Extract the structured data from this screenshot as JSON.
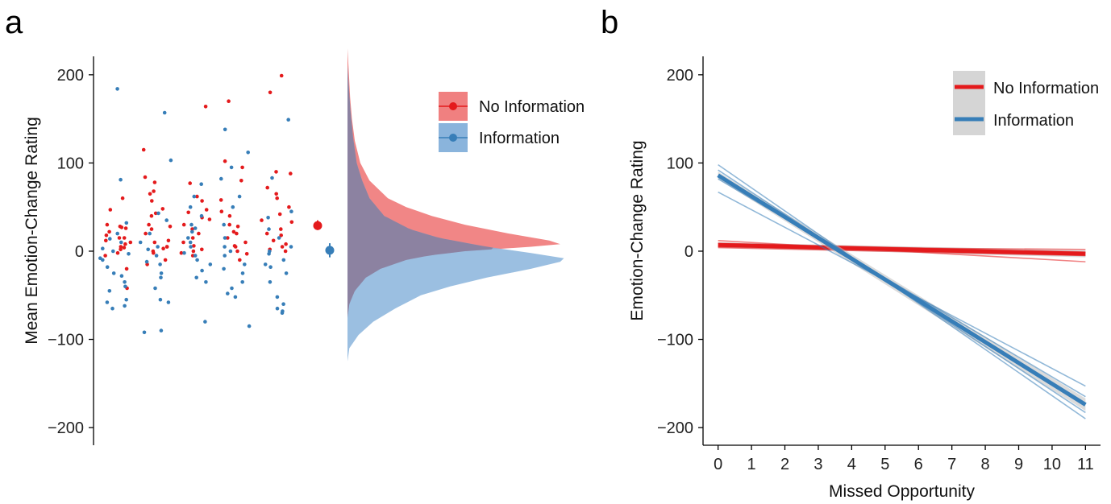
{
  "colors": {
    "no_information": "#e41a1c",
    "information": "#377eb8",
    "no_information_fill": "#f08080",
    "information_fill": "#8ab4dc",
    "overlap_fill": "#8b7f9e"
  },
  "chart_data": [
    {
      "panel": "a",
      "type": "scatter",
      "ylabel": "Mean Emotion-Change Rating",
      "ylim": [
        -220,
        230
      ],
      "yticks": [
        -200,
        -100,
        0,
        100,
        200
      ],
      "ytick_labels": [
        "−200",
        "−100",
        "0",
        "100",
        "200"
      ],
      "legend": [
        {
          "name": "No Information",
          "color": "#e41a1c"
        },
        {
          "name": "Information",
          "color": "#377eb8"
        }
      ],
      "legend_position": "top-right",
      "series": [
        {
          "name": "No Information",
          "color": "#e41a1c",
          "points": [
            [
              1,
              28
            ],
            [
              1,
              22
            ],
            [
              1,
              15
            ],
            [
              1,
              10
            ],
            [
              1,
              5
            ],
            [
              1,
              2
            ],
            [
              1,
              -5
            ],
            [
              1,
              -42
            ],
            [
              1,
              27
            ],
            [
              1,
              8
            ],
            [
              1,
              60
            ],
            [
              1,
              47
            ],
            [
              1,
              15
            ],
            [
              1,
              12
            ],
            [
              1,
              -2
            ],
            [
              1,
              30
            ],
            [
              1,
              18
            ],
            [
              1,
              4
            ],
            [
              1,
              -20
            ],
            [
              1,
              26
            ],
            [
              2,
              115
            ],
            [
              2,
              78
            ],
            [
              2,
              48
            ],
            [
              2,
              40
            ],
            [
              2,
              30
            ],
            [
              2,
              25
            ],
            [
              2,
              12
            ],
            [
              2,
              5
            ],
            [
              2,
              0
            ],
            [
              2,
              -2
            ],
            [
              2,
              -10
            ],
            [
              2,
              20
            ],
            [
              2,
              84
            ],
            [
              2,
              65
            ],
            [
              2,
              57
            ],
            [
              2,
              43
            ],
            [
              2,
              28
            ],
            [
              2,
              10
            ],
            [
              2,
              3
            ],
            [
              2,
              -15
            ],
            [
              2,
              68
            ],
            [
              2,
              5
            ],
            [
              3,
              164
            ],
            [
              3,
              77
            ],
            [
              3,
              62
            ],
            [
              3,
              47
            ],
            [
              3,
              38
            ],
            [
              3,
              30
            ],
            [
              3,
              20
            ],
            [
              3,
              10
            ],
            [
              3,
              2
            ],
            [
              3,
              -5
            ],
            [
              3,
              57
            ],
            [
              3,
              44
            ],
            [
              3,
              25
            ],
            [
              3,
              15
            ],
            [
              3,
              0
            ],
            [
              3,
              36
            ],
            [
              3,
              6
            ],
            [
              3,
              -2
            ],
            [
              4,
              170
            ],
            [
              4,
              102
            ],
            [
              4,
              80
            ],
            [
              4,
              58
            ],
            [
              4,
              40
            ],
            [
              4,
              30
            ],
            [
              4,
              22
            ],
            [
              4,
              15
            ],
            [
              4,
              10
            ],
            [
              4,
              5
            ],
            [
              4,
              0
            ],
            [
              4,
              -3
            ],
            [
              4,
              -10
            ],
            [
              4,
              95
            ],
            [
              4,
              45
            ],
            [
              4,
              28
            ],
            [
              4,
              6
            ],
            [
              4,
              20
            ],
            [
              5,
              199
            ],
            [
              5,
              180
            ],
            [
              5,
              90
            ],
            [
              5,
              88
            ],
            [
              5,
              72
            ],
            [
              5,
              60
            ],
            [
              5,
              50
            ],
            [
              5,
              42
            ],
            [
              5,
              35
            ],
            [
              5,
              25
            ],
            [
              5,
              18
            ],
            [
              5,
              12
            ],
            [
              5,
              8
            ],
            [
              5,
              5
            ],
            [
              5,
              2
            ],
            [
              5,
              0
            ],
            [
              5,
              33
            ],
            [
              5,
              65
            ],
            [
              5,
              20
            ]
          ]
        },
        {
          "name": "Information",
          "color": "#377eb8",
          "points": [
            [
              1,
              184
            ],
            [
              1,
              81
            ],
            [
              1,
              32
            ],
            [
              1,
              20
            ],
            [
              1,
              10
            ],
            [
              1,
              3
            ],
            [
              1,
              -3
            ],
            [
              1,
              -10
            ],
            [
              1,
              -18
            ],
            [
              1,
              -25
            ],
            [
              1,
              -35
            ],
            [
              1,
              -45
            ],
            [
              1,
              -55
            ],
            [
              1,
              -58
            ],
            [
              1,
              -62
            ],
            [
              1,
              -65
            ],
            [
              1,
              0
            ],
            [
              1,
              -8
            ],
            [
              1,
              14
            ],
            [
              1,
              -28
            ],
            [
              1,
              -40
            ],
            [
              2,
              157
            ],
            [
              2,
              103
            ],
            [
              2,
              43
            ],
            [
              2,
              35
            ],
            [
              2,
              20
            ],
            [
              2,
              10
            ],
            [
              2,
              2
            ],
            [
              2,
              -5
            ],
            [
              2,
              -15
            ],
            [
              2,
              -25
            ],
            [
              2,
              -30
            ],
            [
              2,
              -42
            ],
            [
              2,
              -55
            ],
            [
              2,
              -58
            ],
            [
              2,
              -90
            ],
            [
              2,
              -92
            ],
            [
              2,
              5
            ],
            [
              2,
              -12
            ],
            [
              3,
              76
            ],
            [
              3,
              62
            ],
            [
              3,
              50
            ],
            [
              3,
              40
            ],
            [
              3,
              30
            ],
            [
              3,
              22
            ],
            [
              3,
              15
            ],
            [
              3,
              5
            ],
            [
              3,
              -2
            ],
            [
              3,
              -10
            ],
            [
              3,
              -15
            ],
            [
              3,
              -22
            ],
            [
              3,
              -30
            ],
            [
              3,
              -35
            ],
            [
              3,
              -80
            ],
            [
              3,
              10
            ],
            [
              3,
              -5
            ],
            [
              3,
              26
            ],
            [
              4,
              138
            ],
            [
              4,
              112
            ],
            [
              4,
              95
            ],
            [
              4,
              82
            ],
            [
              4,
              62
            ],
            [
              4,
              50
            ],
            [
              4,
              30
            ],
            [
              4,
              15
            ],
            [
              4,
              5
            ],
            [
              4,
              -5
            ],
            [
              4,
              -15
            ],
            [
              4,
              -25
            ],
            [
              4,
              -35
            ],
            [
              4,
              -42
            ],
            [
              4,
              -48
            ],
            [
              4,
              -52
            ],
            [
              4,
              -85
            ],
            [
              4,
              0
            ],
            [
              4,
              -20
            ],
            [
              5,
              149
            ],
            [
              5,
              83
            ],
            [
              5,
              45
            ],
            [
              5,
              38
            ],
            [
              5,
              25
            ],
            [
              5,
              15
            ],
            [
              5,
              5
            ],
            [
              5,
              -3
            ],
            [
              5,
              -10
            ],
            [
              5,
              -18
            ],
            [
              5,
              -25
            ],
            [
              5,
              -35
            ],
            [
              5,
              -52
            ],
            [
              5,
              -60
            ],
            [
              5,
              -65
            ],
            [
              5,
              -68
            ],
            [
              5,
              -70
            ],
            [
              5,
              0
            ],
            [
              5,
              -15
            ]
          ]
        }
      ],
      "summary_points": [
        {
          "series": "No Information",
          "mean": 29,
          "low": 24,
          "high": 35,
          "color": "#e41a1c"
        },
        {
          "series": "Information",
          "mean": 1,
          "low": -7,
          "high": 9,
          "color": "#377eb8"
        }
      ],
      "densities": [
        {
          "series": "No Information",
          "peak_at": 8,
          "y": [
            -75,
            -60,
            -45,
            -30,
            -20,
            -10,
            -5,
            0,
            5,
            8,
            12,
            20,
            30,
            40,
            50,
            60,
            80,
            100,
            125,
            150,
            175,
            200,
            230
          ],
          "density": [
            0.0,
            0.005,
            0.02,
            0.05,
            0.09,
            0.16,
            0.22,
            0.32,
            0.5,
            0.58,
            0.55,
            0.44,
            0.32,
            0.23,
            0.16,
            0.11,
            0.06,
            0.035,
            0.02,
            0.012,
            0.007,
            0.004,
            0.0
          ]
        },
        {
          "series": "Information",
          "peak_at": -8,
          "y": [
            -125,
            -110,
            -95,
            -80,
            -65,
            -50,
            -40,
            -30,
            -20,
            -12,
            -8,
            -2,
            5,
            15,
            25,
            40,
            60,
            80,
            100,
            130,
            160,
            190,
            210
          ],
          "density": [
            0.0,
            0.005,
            0.03,
            0.07,
            0.13,
            0.2,
            0.28,
            0.38,
            0.5,
            0.58,
            0.59,
            0.5,
            0.38,
            0.25,
            0.17,
            0.1,
            0.06,
            0.04,
            0.025,
            0.015,
            0.008,
            0.003,
            0.0
          ]
        }
      ]
    },
    {
      "panel": "b",
      "type": "line",
      "xlabel": "Missed Opportunity",
      "ylabel": "Emotion-Change Rating",
      "xlim": [
        -0.45,
        11.45
      ],
      "ylim": [
        -220,
        230
      ],
      "xticks": [
        0,
        1,
        2,
        3,
        4,
        5,
        6,
        7,
        8,
        9,
        10,
        11
      ],
      "yticks": [
        -200,
        -100,
        0,
        100,
        200
      ],
      "ytick_labels": [
        "−200",
        "−100",
        "0",
        "100",
        "200"
      ],
      "legend": [
        {
          "name": "No Information",
          "color": "#e41a1c"
        },
        {
          "name": "Information",
          "color": "#377eb8"
        }
      ],
      "legend_position": "top-right",
      "series": [
        {
          "name": "No Information",
          "color": "#e41a1c",
          "fit": {
            "x": [
              0,
              11
            ],
            "y": [
              7,
              -3
            ]
          },
          "band": {
            "x": [
              0,
              11
            ],
            "low": [
              4,
              -7
            ],
            "high": [
              10,
              1
            ]
          },
          "thin_lines": [
            {
              "x": [
                0,
                11
              ],
              "y": [
                12,
                -12
              ]
            },
            {
              "x": [
                0,
                11
              ],
              "y": [
                5,
                2
              ]
            },
            {
              "x": [
                0,
                11
              ],
              "y": [
                9,
                -1
              ]
            },
            {
              "x": [
                0,
                11
              ],
              "y": [
                4,
                -5
              ]
            }
          ]
        },
        {
          "name": "Information",
          "color": "#377eb8",
          "fit": {
            "x": [
              0,
              11
            ],
            "y": [
              86,
              -174
            ]
          },
          "band": {
            "x": [
              0,
              11
            ],
            "low": [
              82,
              -181
            ],
            "high": [
              90,
              -167
            ]
          },
          "thin_lines": [
            {
              "x": [
                0,
                11
              ],
              "y": [
                98,
                -190
              ]
            },
            {
              "x": [
                0,
                11
              ],
              "y": [
                67,
                -153
              ]
            },
            {
              "x": [
                0,
                11
              ],
              "y": [
                92,
                -183
              ]
            },
            {
              "x": [
                0,
                11
              ],
              "y": [
                82,
                -165
              ]
            }
          ]
        }
      ]
    }
  ],
  "panel_labels": {
    "a": "a",
    "b": "b"
  }
}
